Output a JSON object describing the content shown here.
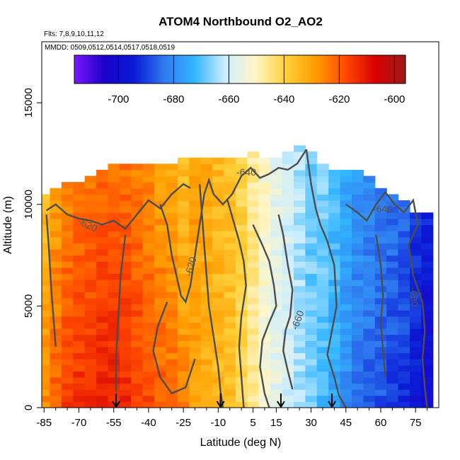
{
  "chart_data": {
    "type": "heatmap",
    "title": "ATOM4 Northbound O2_AO2",
    "subtitle_flights": "Flts: 7,8,9,10,11,12",
    "subtitle_dates": "MMDD: 0509,0512,0514,0517,0518,0519",
    "xlabel": "Latitude (deg N)",
    "ylabel": "Altitude (m)",
    "xlim": [
      -86,
      85
    ],
    "ylim": [
      0,
      18000
    ],
    "x_ticks": [
      "-85",
      "-70",
      "-55",
      "-40",
      "-25",
      "-10",
      "5",
      "15",
      "30",
      "45",
      "60",
      "75"
    ],
    "x_tick_values": [
      -85,
      -70,
      -55,
      -40,
      -25,
      -10,
      5,
      15,
      30,
      45,
      60,
      75
    ],
    "y_ticks": [
      "0",
      "5000",
      "10000",
      "15000"
    ],
    "y_tick_values": [
      0,
      5000,
      10000,
      15000
    ],
    "colorbar": {
      "range": [
        -716,
        -596
      ],
      "ticks": [
        "-700",
        "-680",
        "-660",
        "-640",
        "-620",
        "-600"
      ],
      "tick_values": [
        -700,
        -680,
        -660,
        -640,
        -620,
        -600
      ],
      "colors": [
        "#7b18ff",
        "#1a00c8",
        "#0b1bd6",
        "#2f7bf0",
        "#33b6ff",
        "#cdeeff",
        "#fff6c8",
        "#ffd23c",
        "#ff9d00",
        "#ff4a00",
        "#d80000",
        "#9c1a1a"
      ]
    },
    "contour_labels": [
      "-640",
      "-640",
      "-620",
      "-620",
      "-660",
      "-680"
    ],
    "arrows_latitude": [
      -54,
      -9,
      17,
      39
    ],
    "columns": [
      {
        "lat": -85,
        "top": 10500,
        "value": -626
      },
      {
        "lat": -80,
        "top": 10600,
        "value": -620
      },
      {
        "lat": -75,
        "top": 10900,
        "value": -616
      },
      {
        "lat": -70,
        "top": 11000,
        "value": -614
      },
      {
        "lat": -65,
        "top": 11300,
        "value": -613
      },
      {
        "lat": -60,
        "top": 11700,
        "value": -612
      },
      {
        "lat": -55,
        "top": 11800,
        "value": -612
      },
      {
        "lat": -50,
        "top": 11800,
        "value": -613
      },
      {
        "lat": -45,
        "top": 11800,
        "value": -615
      },
      {
        "lat": -40,
        "top": 11800,
        "value": -617
      },
      {
        "lat": -35,
        "top": 11800,
        "value": -620
      },
      {
        "lat": -30,
        "top": 12000,
        "value": -622
      },
      {
        "lat": -25,
        "top": 12100,
        "value": -626
      },
      {
        "lat": -20,
        "top": 12200,
        "value": -630
      },
      {
        "lat": -15,
        "top": 12300,
        "value": -632
      },
      {
        "lat": -10,
        "top": 12300,
        "value": -634
      },
      {
        "lat": -5,
        "top": 12300,
        "value": -636
      },
      {
        "lat": 0,
        "top": 12300,
        "value": -640
      },
      {
        "lat": 5,
        "top": 12400,
        "value": -646
      },
      {
        "lat": 10,
        "top": 12300,
        "value": -652
      },
      {
        "lat": 15,
        "top": 12300,
        "value": -657
      },
      {
        "lat": 20,
        "top": 12500,
        "value": -660
      },
      {
        "lat": 25,
        "top": 12800,
        "value": -664
      },
      {
        "lat": 30,
        "top": 12400,
        "value": -668
      },
      {
        "lat": 35,
        "top": 12000,
        "value": -672
      },
      {
        "lat": 40,
        "top": 11700,
        "value": -676
      },
      {
        "lat": 45,
        "top": 11700,
        "value": -680
      },
      {
        "lat": 50,
        "top": 11700,
        "value": -684
      },
      {
        "lat": 55,
        "top": 11300,
        "value": -686
      },
      {
        "lat": 60,
        "top": 10800,
        "value": -688
      },
      {
        "lat": 65,
        "top": 10500,
        "value": -690
      },
      {
        "lat": 70,
        "top": 10000,
        "value": -692
      },
      {
        "lat": 75,
        "top": 9500,
        "value": -696
      },
      {
        "lat": 80,
        "top": 9500,
        "value": -700
      }
    ]
  }
}
